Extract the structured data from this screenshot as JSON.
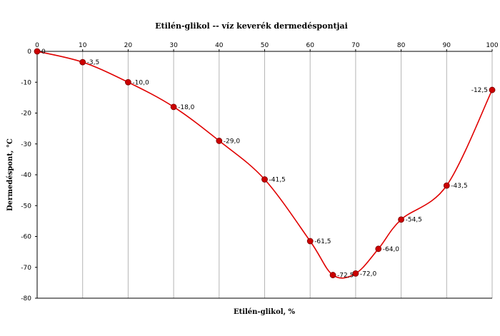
{
  "chart_data": {
    "type": "line",
    "title": "Etilén-glikol -- víz keverék dermedéspontjai",
    "xlabel": "Etilén-glikol, %",
    "ylabel": "Dermedéspont, °C",
    "xlim": [
      0,
      100
    ],
    "ylim": [
      -80,
      0
    ],
    "xticks": [
      0,
      10,
      20,
      30,
      40,
      50,
      60,
      70,
      80,
      90,
      100
    ],
    "yticks": [
      0,
      -10,
      -20,
      -30,
      -40,
      -50,
      -60,
      -70,
      -80
    ],
    "grid": "vertical",
    "series": [
      {
        "color": "#e00000",
        "marker_color": "#cc0000",
        "x": [
          0,
          10,
          20,
          30,
          40,
          50,
          60,
          65,
          70,
          75,
          80,
          90,
          100
        ],
        "y": [
          0,
          -3.5,
          -10.0,
          -18.0,
          -29.0,
          -41.5,
          -61.5,
          -72.5,
          -72.0,
          -64.0,
          -54.5,
          -43.5,
          -12.5
        ],
        "labels": [
          "0",
          "-3,5",
          "-10,0",
          "-18,0",
          "-29,0",
          "-41,5",
          "-61,5",
          "-72,5",
          "-72,0",
          "-64,0",
          "-54,5",
          "-43,5",
          "-12,5"
        ]
      }
    ]
  }
}
